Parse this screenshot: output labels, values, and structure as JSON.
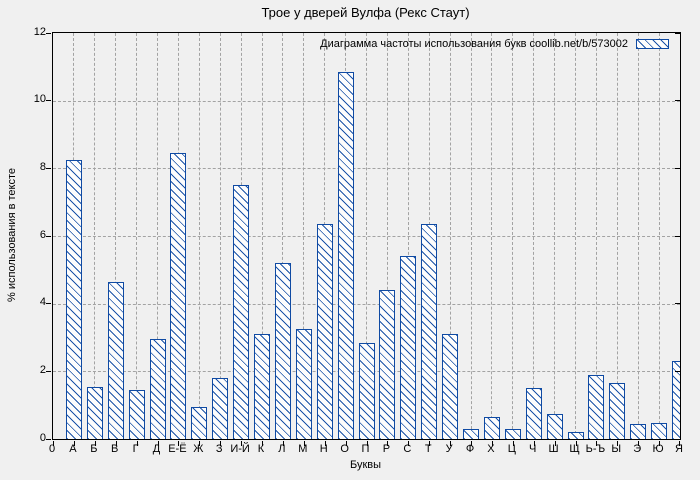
{
  "colors": {
    "bar_blue": "#0f4aa3",
    "grid_gray": "#a3a3a3",
    "background": "#f0f0f0",
    "bar_fill": "#fdfdfd",
    "axis_black": "#000000"
  },
  "chart_data": {
    "type": "bar",
    "title": "Трое у дверей Вулфа (Рекс Стаут)",
    "legend": "Диаграмма частоты использования букв coollib.net/b/573002",
    "legend_position": "top-right",
    "xlabel": "Буквы",
    "ylabel": "% использования в тексте",
    "origin_label": "0",
    "ylim": [
      0,
      12
    ],
    "yticks": [
      0,
      2,
      4,
      6,
      8,
      10,
      12
    ],
    "grid": "dashed",
    "categories": [
      "А",
      "Б",
      "В",
      "Г",
      "Д",
      "Е-Ё",
      "Ж",
      "З",
      "И-Й",
      "К",
      "Л",
      "М",
      "Н",
      "О",
      "П",
      "Р",
      "С",
      "Т",
      "У",
      "Ф",
      "Х",
      "Ц",
      "Ч",
      "Ш",
      "Щ",
      "Ь-Ъ",
      "Ы",
      "Э",
      "Ю",
      "Я"
    ],
    "values": [
      8.25,
      1.55,
      4.65,
      1.45,
      2.95,
      8.45,
      0.95,
      1.8,
      7.5,
      3.1,
      5.2,
      3.25,
      6.35,
      10.85,
      2.85,
      4.4,
      5.4,
      6.35,
      3.1,
      0.3,
      0.65,
      0.3,
      1.5,
      0.75,
      0.2,
      1.9,
      1.65,
      0.45,
      0.47,
      2.3
    ]
  }
}
